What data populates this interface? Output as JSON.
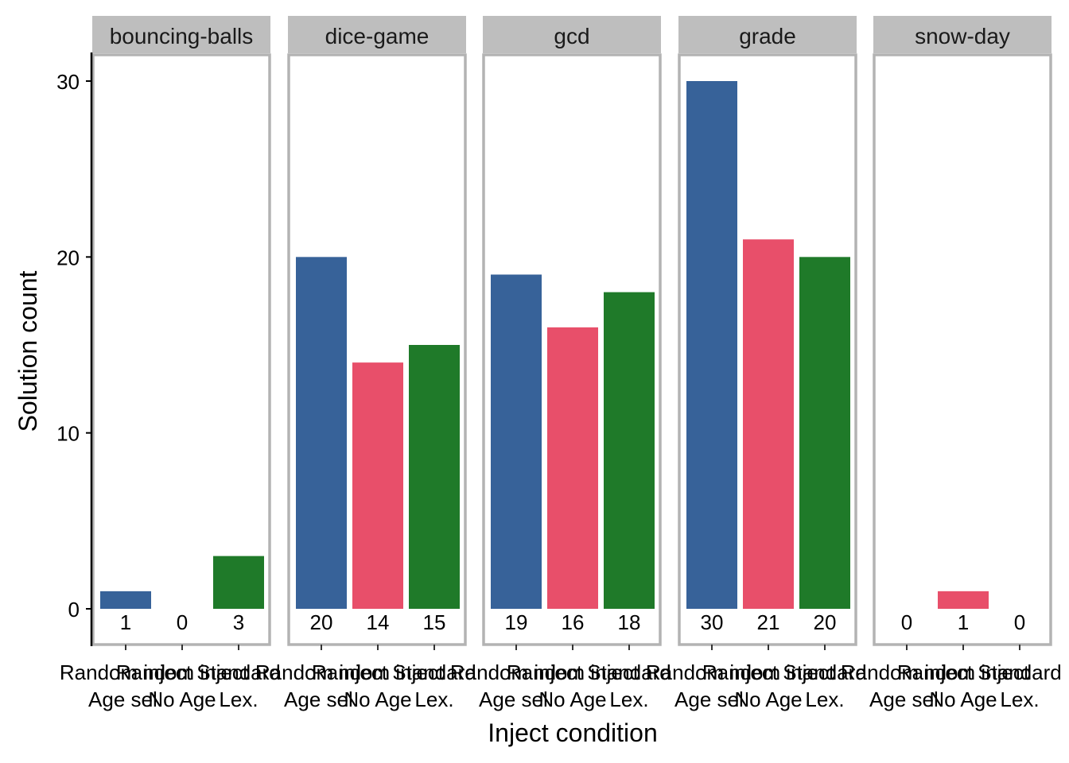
{
  "chart_data": {
    "type": "bar",
    "xlabel": "Inject condition",
    "ylabel": "Solution count",
    "ylim": [
      0,
      31
    ],
    "yticks": [
      0,
      10,
      20,
      30
    ],
    "grid": false,
    "legend": "none",
    "categories": [
      [
        "Random inject",
        "Age sel."
      ],
      [
        "Random inject",
        "No Age"
      ],
      [
        "Standard",
        "Lex."
      ]
    ],
    "category_colors": [
      "#376299",
      "#E84F6A",
      "#1F7A29"
    ],
    "facets": [
      {
        "name": "bouncing-balls",
        "values": [
          1,
          0,
          3
        ]
      },
      {
        "name": "dice-game",
        "values": [
          20,
          14,
          15
        ]
      },
      {
        "name": "gcd",
        "values": [
          19,
          16,
          18
        ]
      },
      {
        "name": "grade",
        "values": [
          30,
          21,
          20
        ]
      },
      {
        "name": "snow-day",
        "values": [
          0,
          1,
          0
        ]
      }
    ]
  }
}
